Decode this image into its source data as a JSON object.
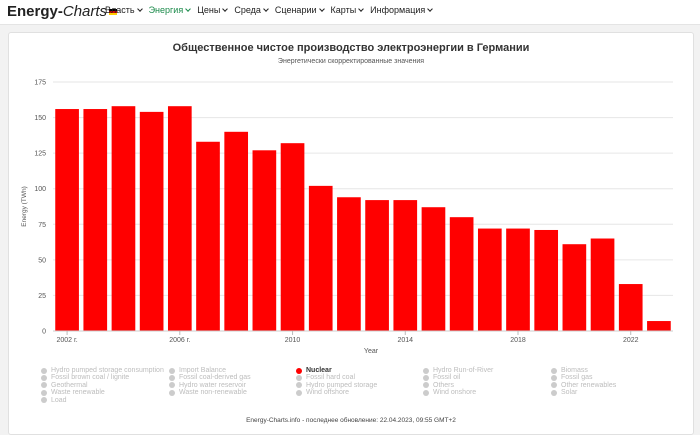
{
  "app": {
    "logo_bold": "Energy-",
    "logo_italic": "Charts"
  },
  "nav": [
    {
      "label": "Власть",
      "active": false
    },
    {
      "label": "Энергия",
      "active": true
    },
    {
      "label": "Цены",
      "active": false
    },
    {
      "label": "Среда",
      "active": false
    },
    {
      "label": "Сценарии",
      "active": false
    },
    {
      "label": "Карты",
      "active": false
    },
    {
      "label": "Информация",
      "active": false
    }
  ],
  "chart_data": {
    "type": "bar",
    "title": "Общественное чистое производство электроэнергии в Германии",
    "subtitle": "Энергетически скорректированные значения",
    "xlabel": "Year",
    "ylabel": "Energy (TWh)",
    "ylim": [
      0,
      175
    ],
    "yticks": [
      0,
      25,
      50,
      75,
      100,
      125,
      150,
      175
    ],
    "color": "#ff0000",
    "categories": [
      2002,
      2003,
      2004,
      2005,
      2006,
      2007,
      2008,
      2009,
      2010,
      2011,
      2012,
      2013,
      2014,
      2015,
      2016,
      2017,
      2018,
      2019,
      2020,
      2021,
      2022,
      2023
    ],
    "xticks": [
      {
        "year": 2002,
        "label": "2002 г."
      },
      {
        "year": 2006,
        "label": "2006 г."
      },
      {
        "year": 2010,
        "label": "2010"
      },
      {
        "year": 2014,
        "label": "2014"
      },
      {
        "year": 2018,
        "label": "2018"
      },
      {
        "year": 2022,
        "label": "2022"
      }
    ],
    "series": [
      {
        "name": "Nuclear",
        "values": [
          156,
          156,
          158,
          154,
          158,
          133,
          140,
          127,
          132,
          102,
          94,
          92,
          92,
          87,
          80,
          72,
          72,
          71,
          61,
          65,
          33,
          7
        ]
      }
    ],
    "legend_position": "bottom",
    "grid": true
  },
  "legend": [
    {
      "label": "Hydro pumped storage consumption",
      "active": false
    },
    {
      "label": "Import Balance",
      "active": false
    },
    {
      "label": "Nuclear",
      "active": true
    },
    {
      "label": "Hydro Run-of-River",
      "active": false
    },
    {
      "label": "Biomass",
      "active": false
    },
    {
      "label": "Fossil brown coal / lignite",
      "active": false
    },
    {
      "label": "Fossil coal-derived gas",
      "active": false
    },
    {
      "label": "Fossil hard coal",
      "active": false
    },
    {
      "label": "Fossil oil",
      "active": false
    },
    {
      "label": "Fossil gas",
      "active": false
    },
    {
      "label": "Geothermal",
      "active": false
    },
    {
      "label": "Hydro water reservoir",
      "active": false
    },
    {
      "label": "Hydro pumped storage",
      "active": false
    },
    {
      "label": "Others",
      "active": false
    },
    {
      "label": "Other renewables",
      "active": false
    },
    {
      "label": "Waste renewable",
      "active": false
    },
    {
      "label": "Waste non-renewable",
      "active": false
    },
    {
      "label": "Wind offshore",
      "active": false
    },
    {
      "label": "Wind onshore",
      "active": false
    },
    {
      "label": "Solar",
      "active": false
    },
    {
      "label": "Load",
      "active": false
    }
  ],
  "footer": "Energy-Charts.info - последнее обновление: 22.04.2023, 09:55 GMT+2"
}
